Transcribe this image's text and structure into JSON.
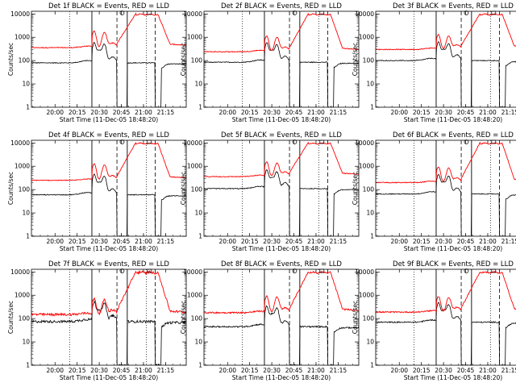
{
  "figure": {
    "start_time_label": "Start Time (11-Dec-05 18:48:20)",
    "ylabel": "Counts/sec"
  },
  "chart_data": {
    "type": "line",
    "shared": {
      "x_ticks": [
        "20:00",
        "20:15",
        "20:30",
        "20:45",
        "21:00",
        "21:15"
      ],
      "x_tick_minutes": [
        0,
        15,
        30,
        45,
        60,
        75
      ],
      "xlim_minutes": [
        -16,
        89
      ],
      "yscale": "log",
      "ylim": [
        1,
        13000
      ],
      "y_ticks": [
        1,
        10,
        100,
        1000,
        10000
      ],
      "y_tick_labels": [
        "1",
        "10",
        "100",
        "1000",
        "10000"
      ],
      "xlabel": "Start Time (11-Dec-05 18:48:20)",
      "ylabel": "Counts/sec",
      "vlines_solid_minutes": [
        25,
        49
      ],
      "vlines_dashed_minutes": [
        42,
        68
      ],
      "vlines_dotted_minutes": [
        10,
        62
      ],
      "colors": {
        "events": "#000000",
        "lld": "#ff0000"
      },
      "series_names": [
        "Events",
        "LLD"
      ]
    },
    "panels": [
      {
        "title": "Det 1f BLACK = Events, RED = LLD",
        "events_base": 80,
        "lld_base": 360,
        "spike": 1.0,
        "noise": 0.04
      },
      {
        "title": "Det 2f BLACK = Events, RED = LLD",
        "events_base": 85,
        "lld_base": 240,
        "spike": 0.9,
        "noise": 0.04
      },
      {
        "title": "Det 3f BLACK = Events, RED = LLD",
        "events_base": 100,
        "lld_base": 300,
        "spike": 0.8,
        "noise": 0.04
      },
      {
        "title": "Det 4f BLACK = Events, RED = LLD",
        "events_base": 60,
        "lld_base": 250,
        "spike": 1.0,
        "noise": 0.04
      },
      {
        "title": "Det 5f BLACK = Events, RED = LLD",
        "events_base": 110,
        "lld_base": 360,
        "spike": 0.8,
        "noise": 0.04
      },
      {
        "title": "Det 6f BLACK = Events, RED = LLD",
        "events_base": 65,
        "lld_base": 200,
        "spike": 0.9,
        "noise": 0.04
      },
      {
        "title": "Det 7f BLACK = Events, RED = LLD",
        "events_base": 75,
        "lld_base": 150,
        "spike": 0.9,
        "noise": 0.12
      },
      {
        "title": "Det 8f BLACK = Events, RED = LLD",
        "events_base": 45,
        "lld_base": 180,
        "spike": 1.0,
        "noise": 0.07
      },
      {
        "title": "Det 9f BLACK = Events, RED = LLD",
        "events_base": 70,
        "lld_base": 190,
        "spike": 0.9,
        "noise": 0.06
      }
    ]
  }
}
